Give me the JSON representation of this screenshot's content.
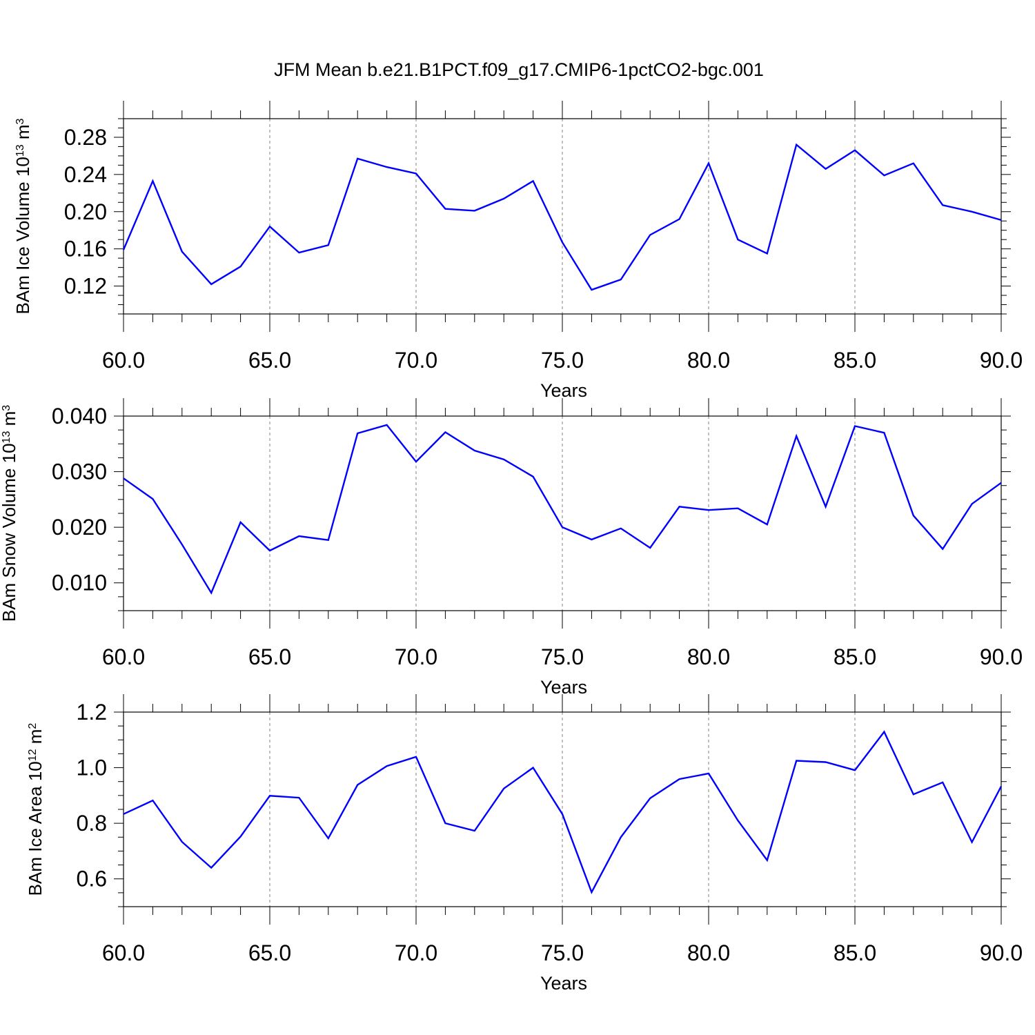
{
  "title": "JFM Mean b.e21.B1PCT.f09_g17.CMIP6-1pctCO2-bgc.001",
  "colors": {
    "line": "#0000ff",
    "frame": "#000000",
    "grid": "#808080",
    "background": "#ffffff"
  },
  "chart_data": [
    {
      "type": "line",
      "ylabel": {
        "text": "BAm Ice Volume 10",
        "exp": "13",
        "unit": " m",
        "unit_exp": "3"
      },
      "xlabel": "Years",
      "xlim": [
        60,
        90
      ],
      "ylim": [
        0.09,
        0.3
      ],
      "grid": "vertical dashed at major x ticks",
      "x_ticks": [
        60,
        65,
        70,
        75,
        80,
        85,
        90
      ],
      "x_tick_labels": [
        "60.0",
        "65.0",
        "70.0",
        "75.0",
        "80.0",
        "85.0",
        "90.0"
      ],
      "y_ticks": [
        0.12,
        0.16,
        0.2,
        0.24,
        0.28
      ],
      "y_tick_labels": [
        "0.12",
        "0.16",
        "0.20",
        "0.24",
        "0.28"
      ],
      "y_minor_step": 0.01,
      "x": [
        60,
        61,
        62,
        63,
        64,
        65,
        66,
        67,
        68,
        69,
        70,
        71,
        72,
        73,
        74,
        75,
        76,
        77,
        78,
        79,
        80,
        81,
        82,
        83,
        84,
        85,
        86,
        87,
        88,
        89,
        90
      ],
      "series": [
        {
          "values": [
            0.159,
            0.233,
            0.157,
            0.122,
            0.141,
            0.184,
            0.156,
            0.164,
            0.257,
            0.248,
            0.241,
            0.203,
            0.201,
            0.214,
            0.233,
            0.167,
            0.116,
            0.127,
            0.175,
            0.192,
            0.252,
            0.17,
            0.155,
            0.272,
            0.246,
            0.266,
            0.239,
            0.252,
            0.207,
            0.2,
            0.191
          ]
        }
      ]
    },
    {
      "type": "line",
      "ylabel": {
        "text": "BAm Snow Volume 10",
        "exp": "13",
        "unit": " m",
        "unit_exp": "3"
      },
      "xlabel": "Years",
      "xlim": [
        60,
        90
      ],
      "ylim": [
        0.005,
        0.04
      ],
      "grid": "vertical dashed at major x ticks",
      "x_ticks": [
        60,
        65,
        70,
        75,
        80,
        85,
        90
      ],
      "x_tick_labels": [
        "60.0",
        "65.0",
        "70.0",
        "75.0",
        "80.0",
        "85.0",
        "90.0"
      ],
      "y_ticks": [
        0.01,
        0.02,
        0.03,
        0.04
      ],
      "y_tick_labels": [
        "0.010",
        "0.020",
        "0.030",
        "0.040"
      ],
      "y_minor_step": 0.0025,
      "x": [
        60,
        61,
        62,
        63,
        64,
        65,
        66,
        67,
        68,
        69,
        70,
        71,
        72,
        73,
        74,
        75,
        76,
        77,
        78,
        79,
        80,
        81,
        82,
        83,
        84,
        85,
        86,
        87,
        88,
        89,
        90
      ],
      "series": [
        {
          "values": [
            0.0288,
            0.0251,
            0.0169,
            0.0082,
            0.0209,
            0.0158,
            0.0184,
            0.0177,
            0.0369,
            0.0384,
            0.0318,
            0.0371,
            0.0338,
            0.0322,
            0.0291,
            0.02,
            0.0178,
            0.0198,
            0.0163,
            0.0237,
            0.0231,
            0.0234,
            0.0205,
            0.0364,
            0.0237,
            0.0382,
            0.037,
            0.0221,
            0.0161,
            0.0242,
            0.028
          ]
        }
      ]
    },
    {
      "type": "line",
      "ylabel": {
        "text": "BAm Ice Area 10",
        "exp": "12",
        "unit": " m",
        "unit_exp": "2"
      },
      "xlabel": "Years",
      "xlim": [
        60,
        90
      ],
      "ylim": [
        0.5,
        1.2
      ],
      "grid": "vertical dashed at major x ticks",
      "x_ticks": [
        60,
        65,
        70,
        75,
        80,
        85,
        90
      ],
      "x_tick_labels": [
        "60.0",
        "65.0",
        "70.0",
        "75.0",
        "80.0",
        "85.0",
        "90.0"
      ],
      "y_ticks": [
        0.6,
        0.8,
        1.0,
        1.2
      ],
      "y_tick_labels": [
        "0.6",
        "0.8",
        "1.0",
        "1.2"
      ],
      "y_minor_step": 0.05,
      "x": [
        60,
        61,
        62,
        63,
        64,
        65,
        66,
        67,
        68,
        69,
        70,
        71,
        72,
        73,
        74,
        75,
        76,
        77,
        78,
        79,
        80,
        81,
        82,
        83,
        84,
        85,
        86,
        87,
        88,
        89,
        90
      ],
      "series": [
        {
          "values": [
            0.833,
            0.882,
            0.733,
            0.64,
            0.752,
            0.899,
            0.892,
            0.746,
            0.938,
            1.006,
            1.039,
            0.8,
            0.773,
            0.925,
            1.0,
            0.833,
            0.552,
            0.75,
            0.89,
            0.959,
            0.979,
            0.81,
            0.667,
            1.025,
            1.02,
            0.991,
            1.129,
            0.904,
            0.947,
            0.732,
            0.933
          ]
        }
      ]
    }
  ]
}
